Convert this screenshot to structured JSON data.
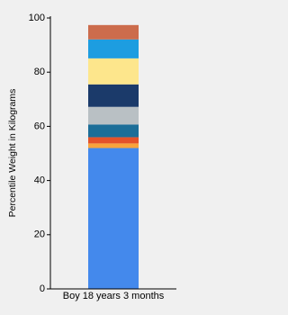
{
  "chart_data": {
    "type": "stacked-bar",
    "y_label": "Percentile Weight in Kilograms",
    "categories": [
      "Boy 18 years 3 months"
    ],
    "series": [
      {
        "color": "#4489ec",
        "values": [
          52
        ]
      },
      {
        "color": "#f8a33c",
        "values": [
          1.7
        ]
      },
      {
        "color": "#e4522a",
        "values": [
          2.3
        ]
      },
      {
        "color": "#1c6e98",
        "values": [
          4.7
        ]
      },
      {
        "color": "#b9c0c4",
        "values": [
          6.5
        ]
      },
      {
        "color": "#1b3a6a",
        "values": [
          8.3
        ]
      },
      {
        "color": "#fde68c",
        "values": [
          9.6
        ]
      },
      {
        "color": "#1d9de0",
        "values": [
          7
        ]
      },
      {
        "color": "#cc6c4c",
        "values": [
          5.3
        ]
      }
    ],
    "ylim": [
      0,
      100
    ],
    "yticks": [
      0,
      20,
      40,
      60,
      80,
      100
    ],
    "grid": false
  }
}
